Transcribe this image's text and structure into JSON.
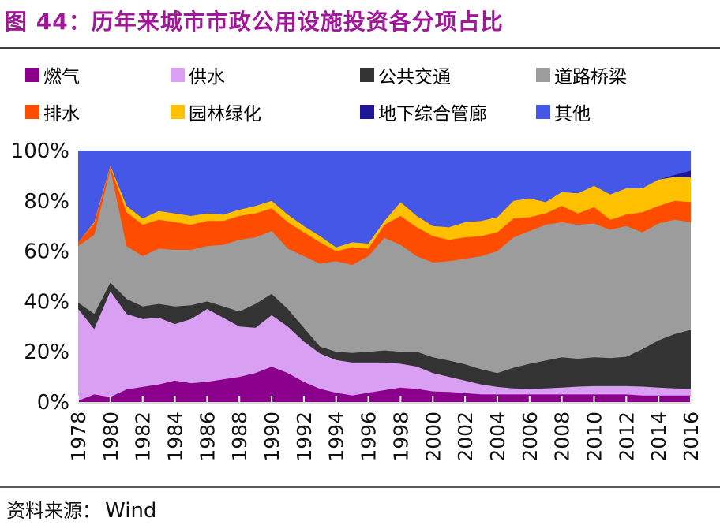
{
  "title": "图 44：历年来城市市政公用设施投资各分项占比",
  "source": {
    "label": "资料来源：",
    "value": "Wind"
  },
  "colors": {
    "title": "#A0179A",
    "divider": "#3d3d3d",
    "axis_text": "#111111",
    "axis_line": "#d9d9d9",
    "tick_mark": "#ffffff",
    "background": "#ffffff"
  },
  "legend": [
    {
      "id": "gas",
      "label": "燃气",
      "color": "#8B008B"
    },
    {
      "id": "water",
      "label": "供水",
      "color": "#D99FF2"
    },
    {
      "id": "transit",
      "label": "公共交通",
      "color": "#333333"
    },
    {
      "id": "road",
      "label": "道路桥梁",
      "color": "#9C9C9C"
    },
    {
      "id": "drain",
      "label": "排水",
      "color": "#FF4D00"
    },
    {
      "id": "garden",
      "label": "园林绿化",
      "color": "#FFC000"
    },
    {
      "id": "tunnel",
      "label": "地下综合管廊",
      "color": "#1E1694"
    },
    {
      "id": "other",
      "label": "其他",
      "color": "#4557E6"
    }
  ],
  "chart_data": {
    "type": "area",
    "stacked": true,
    "unit": "%",
    "title": "历年来城市市政公用设施投资各分项占比",
    "xlabel": "",
    "ylabel": "",
    "ylim": [
      0,
      100
    ],
    "grid": false,
    "legend_position": "top",
    "x": [
      1978,
      1979,
      1980,
      1981,
      1982,
      1983,
      1984,
      1985,
      1986,
      1987,
      1988,
      1989,
      1990,
      1991,
      1992,
      1993,
      1994,
      1995,
      1996,
      1997,
      1998,
      1999,
      2000,
      2001,
      2002,
      2003,
      2004,
      2005,
      2006,
      2007,
      2008,
      2009,
      2010,
      2011,
      2012,
      2013,
      2014,
      2015,
      2016
    ],
    "x_tick_labels": [
      "1978",
      "1980",
      "1982",
      "1984",
      "1986",
      "1988",
      "1990",
      "1992",
      "1994",
      "1996",
      "1998",
      "2000",
      "2002",
      "2004",
      "2006",
      "2008",
      "2010",
      "2012",
      "2014",
      "2016"
    ],
    "y_tick_labels": [
      "0%",
      "20%",
      "40%",
      "60%",
      "80%",
      "100%"
    ],
    "series": [
      {
        "id": "gas",
        "name": "燃气",
        "color": "#8B008B",
        "values": [
          0.5,
          3,
          2,
          5,
          6,
          7,
          8.5,
          7.5,
          8,
          9,
          10,
          11.5,
          14,
          11.5,
          8,
          5.2,
          3.7,
          2.6,
          3.7,
          4.7,
          5.7,
          5.2,
          4.2,
          4,
          3.5,
          3,
          3,
          3,
          3,
          3,
          3,
          3,
          3,
          3,
          3,
          2.6,
          2.6,
          2.6,
          2.6
        ]
      },
      {
        "id": "water",
        "name": "供水",
        "color": "#D99FF2",
        "values": [
          36.5,
          26,
          42,
          30,
          27,
          26.5,
          22.5,
          25.5,
          29,
          24.5,
          20,
          18,
          20.5,
          18.5,
          16,
          14.1,
          13,
          13.1,
          12,
          11,
          9.5,
          8.9,
          7.3,
          6,
          5,
          4,
          3,
          2.4,
          2.2,
          2.4,
          2.7,
          3.1,
          3.3,
          3.3,
          3.3,
          3.5,
          3.1,
          2.8,
          2.6
        ]
      },
      {
        "id": "transit",
        "name": "公共交通",
        "color": "#333333",
        "values": [
          2.5,
          6,
          3.5,
          6,
          5,
          5.5,
          7,
          5.5,
          3,
          4.5,
          6,
          9.5,
          8.5,
          7,
          5.5,
          2.7,
          3.3,
          3.8,
          4.3,
          4.8,
          4.8,
          5.9,
          6.3,
          6.5,
          6.5,
          6,
          5.5,
          8.2,
          10,
          11.1,
          12.1,
          11.1,
          11.5,
          11.2,
          11.7,
          14.9,
          18.8,
          21.6,
          23.5
        ]
      },
      {
        "id": "road",
        "name": "道路桥梁",
        "color": "#9C9C9C",
        "values": [
          22.5,
          31.5,
          45,
          21,
          20,
          22,
          22.5,
          22,
          22,
          24.5,
          28.5,
          26.5,
          25,
          24,
          28.5,
          33,
          36,
          35,
          38,
          44.8,
          42.5,
          38,
          37.7,
          39.5,
          42,
          45,
          48.5,
          51.9,
          52.8,
          54,
          53.7,
          53.3,
          53.2,
          51,
          52,
          46.5,
          46.5,
          45.5,
          42.8
        ]
      },
      {
        "id": "drain",
        "name": "排水",
        "color": "#FF4D00",
        "values": [
          1.5,
          4.5,
          1,
          13.5,
          12.5,
          11.5,
          11,
          10,
          10,
          9.5,
          9.5,
          9.5,
          9,
          10.5,
          9.5,
          8.5,
          4,
          7,
          3,
          5.2,
          11.5,
          11.5,
          10.5,
          8.5,
          8.5,
          8,
          7.5,
          7.5,
          5.5,
          4.5,
          6.5,
          4.5,
          6.5,
          4,
          4.5,
          8,
          7,
          7.5,
          8
        ]
      },
      {
        "id": "garden",
        "name": "园林绿化",
        "color": "#FFC000",
        "values": [
          0,
          0.5,
          0.5,
          2.5,
          2.5,
          3.5,
          3.5,
          3.5,
          3,
          2.5,
          2.5,
          3,
          3,
          3,
          2.5,
          2.5,
          1.5,
          2,
          2,
          1.5,
          5.5,
          4.5,
          4,
          5,
          6,
          6,
          6,
          7,
          7.5,
          4.5,
          5.5,
          8,
          8.5,
          10,
          10.5,
          9.5,
          10.5,
          9.5,
          9.8
        ]
      },
      {
        "id": "tunnel",
        "name": "地下综合管廊",
        "color": "#1E1694",
        "values": [
          0,
          0,
          0,
          0,
          0,
          0,
          0,
          0,
          0,
          0,
          0,
          0,
          0,
          0,
          0,
          0,
          0,
          0,
          0,
          0,
          0,
          0,
          0,
          0,
          0,
          0,
          0,
          0,
          0,
          0,
          0,
          0,
          0,
          0,
          0,
          0,
          0,
          0.8,
          2.7
        ]
      },
      {
        "id": "other",
        "name": "其他",
        "color": "#4557E6",
        "values": [
          36.5,
          28.5,
          6,
          22,
          27,
          24,
          25,
          26,
          25,
          25.5,
          23.5,
          22,
          20,
          25.5,
          30,
          34,
          38.5,
          36.5,
          37,
          28,
          20.5,
          26,
          30,
          30.5,
          28.5,
          28,
          26.5,
          20,
          19,
          20.5,
          16.5,
          17,
          14,
          17.5,
          15,
          15,
          11.5,
          9.7,
          8
        ]
      }
    ]
  }
}
